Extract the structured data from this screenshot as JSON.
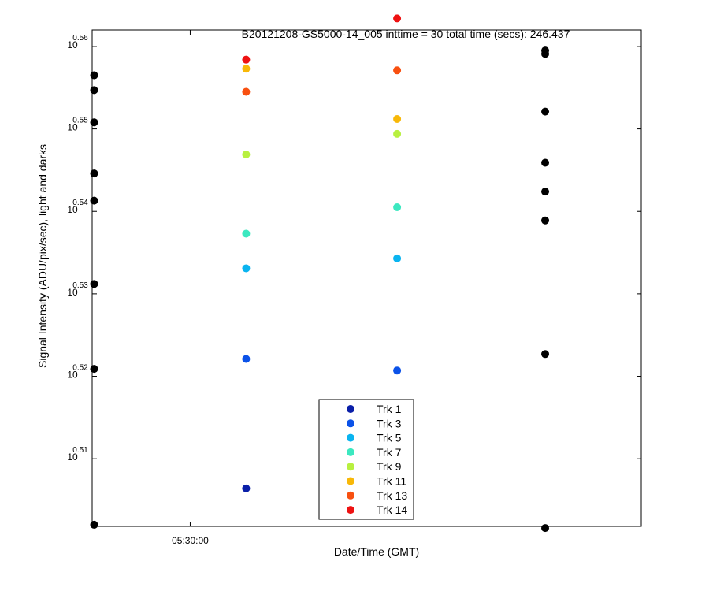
{
  "chart_data": {
    "type": "scatter",
    "title": "B20121208-GS5000-14_005 inttime = 30 total time (secs): 246.437",
    "xlabel": "Date/Time (GMT)",
    "ylabel": "Signal Intensity (ADU/pix/sec), light and darks",
    "y_scale": "log",
    "x_ticks": [
      {
        "label": "05:30:00",
        "x": 0
      }
    ],
    "y_ticks": [
      {
        "base": "10",
        "exp": "0.51",
        "value": 0.51
      },
      {
        "base": "10",
        "exp": "0.52",
        "value": 0.52
      },
      {
        "base": "10",
        "exp": "0.53",
        "value": 0.53
      },
      {
        "base": "10",
        "exp": "0.54",
        "value": 0.54
      },
      {
        "base": "10",
        "exp": "0.55",
        "value": 0.55
      },
      {
        "base": "10",
        "exp": "0.56",
        "value": 0.56
      }
    ],
    "xlim_seconds_from_053000": [
      -100,
      460
    ],
    "ylim_exponent": [
      0.5018,
      0.562
    ],
    "grid": false,
    "legend_position": "bottom-center",
    "series": [
      {
        "name": "Trk 1",
        "color": "#0a1fa8",
        "points": [
          [
            57,
            0.5064
          ]
        ]
      },
      {
        "name": "Trk 3",
        "color": "#0b52e8",
        "points": [
          [
            57,
            0.5221
          ],
          [
            211,
            0.5207
          ]
        ]
      },
      {
        "name": "Trk 5",
        "color": "#0ab4f0",
        "points": [
          [
            57,
            0.5331
          ],
          [
            211,
            0.5343
          ]
        ]
      },
      {
        "name": "Trk 7",
        "color": "#3ce8c0",
        "points": [
          [
            57,
            0.5373
          ],
          [
            211,
            0.5405
          ]
        ]
      },
      {
        "name": "Trk 9",
        "color": "#b8f040",
        "points": [
          [
            57,
            0.5469
          ],
          [
            211,
            0.5494
          ]
        ]
      },
      {
        "name": "Trk 11",
        "color": "#f8b808",
        "points": [
          [
            57,
            0.5573
          ],
          [
            211,
            0.5512
          ]
        ]
      },
      {
        "name": "Trk 13",
        "color": "#f85010",
        "points": [
          [
            57,
            0.5545
          ],
          [
            211,
            0.5571
          ]
        ]
      },
      {
        "name": "Trk 14",
        "color": "#ee1212",
        "points": [
          [
            57,
            0.5584
          ],
          [
            211,
            0.5634
          ]
        ]
      }
    ],
    "darks": {
      "color": "#000000",
      "points": [
        [
          -98,
          0.5565
        ],
        [
          -98,
          0.5547
        ],
        [
          -98,
          0.5508
        ],
        [
          -98,
          0.5446
        ],
        [
          -98,
          0.5413
        ],
        [
          -98,
          0.5312
        ],
        [
          -98,
          0.5209
        ],
        [
          -98,
          0.502
        ],
        [
          362,
          0.5595
        ],
        [
          362,
          0.5591
        ],
        [
          362,
          0.5521
        ],
        [
          362,
          0.5459
        ],
        [
          362,
          0.5424
        ],
        [
          362,
          0.5389
        ],
        [
          362,
          0.5227
        ],
        [
          362,
          0.5016
        ]
      ]
    }
  }
}
